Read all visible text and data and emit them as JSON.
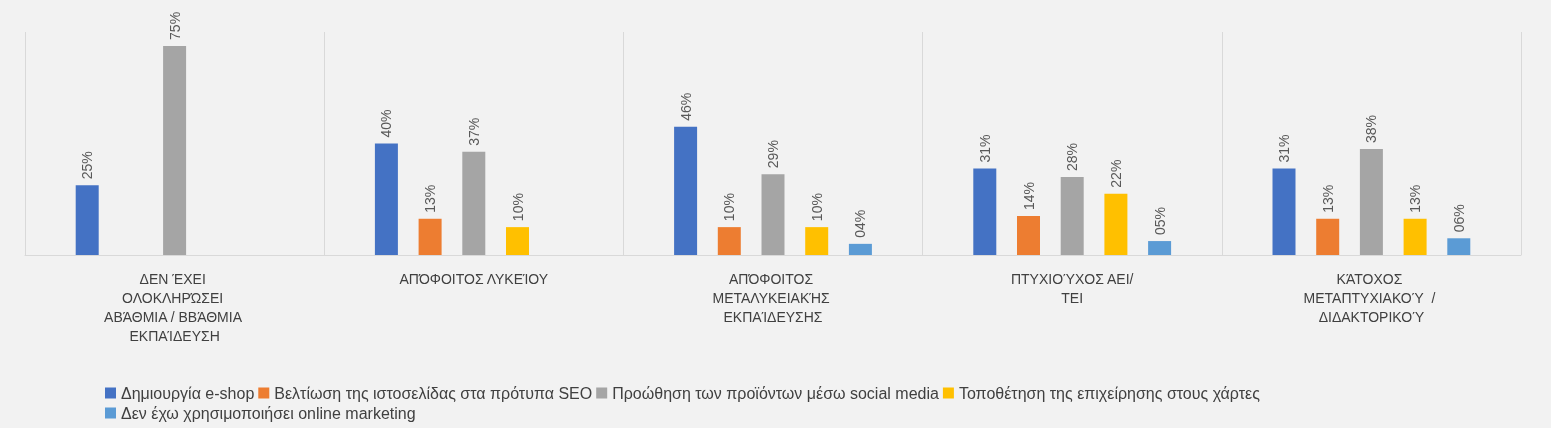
{
  "chart_data": {
    "type": "bar",
    "categories": [
      "ΔΕΝ ΈΧΕΙ ΟΛΟΚΛΗΡΏΣΕΙ ΑΒΆΘΜΙΑ / ΒΒΆΘΜΙΑ ΕΚΠΑΊΔΕΥΣΗ",
      "ΑΠΌΦΟΙΤΟΣ ΛΥΚΕΊΟΥ",
      "ΑΠΌΦΟΙΤΟΣ ΜΕΤΑΛΥΚΕΙΑΚΉΣ ΕΚΠΑΊΔΕΥΣΗΣ",
      "ΠΤΥΧΙΟΎΧΟΣ ΑΕΙ/ΤΕΙ",
      "ΚΆΤΟΧΟΣ ΜΕΤΑΠΤΥΧΙΑΚΟΎ  / ΔΙΔΑΚΤΟΡΙΚΟΎ"
    ],
    "series": [
      {
        "name": "Δημιουργία e-shop",
        "color": "#4472c4",
        "values": [
          25,
          40,
          46,
          31,
          31
        ],
        "value_labels": [
          "25%",
          "40%",
          "46%",
          "31%",
          "31%"
        ]
      },
      {
        "name": "Βελτίωση της ιστοσελίδας στα πρότυπα SEO",
        "color": "#ed7d31",
        "values": [
          null,
          13,
          10,
          14,
          13
        ],
        "value_labels": [
          null,
          "13%",
          "10%",
          "14%",
          "13%"
        ]
      },
      {
        "name": "Προώθηση των προϊόντων μέσω social media",
        "color": "#a5a5a5",
        "values": [
          75,
          37,
          29,
          28,
          38
        ],
        "value_labels": [
          "75%",
          "37%",
          "29%",
          "28%",
          "38%"
        ]
      },
      {
        "name": "Τοποθέτηση της επιχείρησης στους χάρτες",
        "color": "#ffc000",
        "values": [
          null,
          10,
          10,
          22,
          13
        ],
        "value_labels": [
          null,
          "10%",
          "10%",
          "22%",
          "13%"
        ]
      },
      {
        "name": "Δεν έχω χρησιμοποιήσει online marketing",
        "color": "#5b9bd5",
        "values": [
          null,
          null,
          4,
          5,
          6
        ],
        "value_labels": [
          null,
          null,
          "04%",
          "05%",
          "06%"
        ]
      }
    ],
    "grid": "x",
    "legend": "bottom"
  }
}
